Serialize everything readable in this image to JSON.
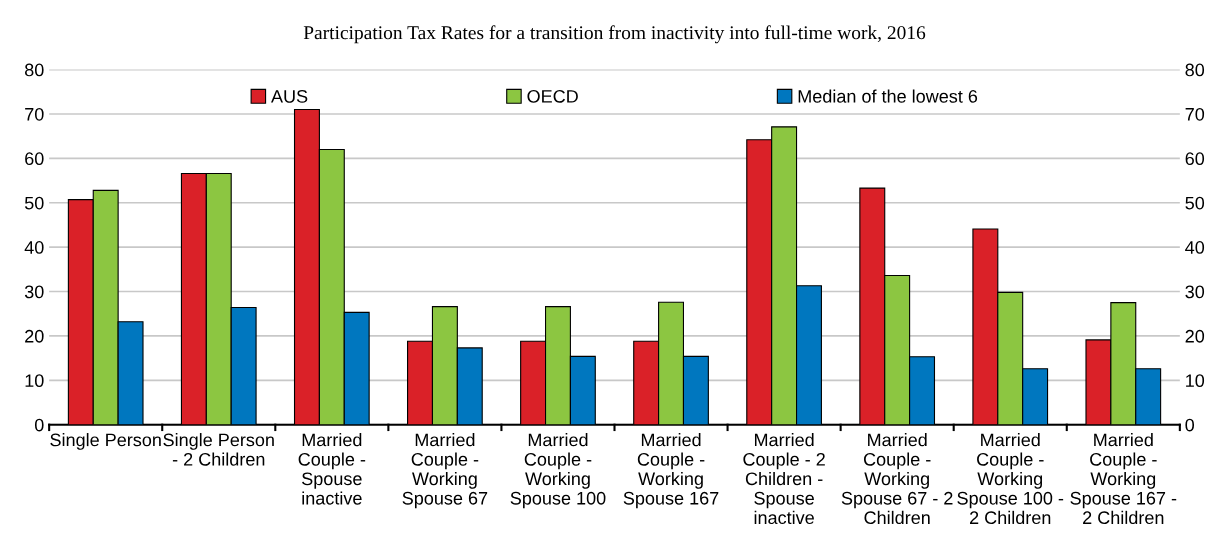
{
  "chart_data": {
    "type": "bar",
    "title": "Participation Tax Rates for a transition from inactivity into full-time work, 2016",
    "categories": [
      "Single Person",
      "Single Person\n- 2 Children",
      "Married\nCouple -\nSpouse\ninactive",
      "Married\nCouple -\nWorking\nSpouse 67",
      "Married\nCouple -\nWorking\nSpouse 100",
      "Married\nCouple -\nWorking\nSpouse 167",
      "Married\nCouple - 2\nChildren -\nSpouse\ninactive",
      "Married\nCouple -\nWorking\nSpouse 67 - 2\nChildren",
      "Married\nCouple -\nWorking\nSpouse 100 -\n2 Children",
      "Married\nCouple -\nWorking\nSpouse 167 -\n2 Children"
    ],
    "series": [
      {
        "name": "AUS",
        "color": "#da2128",
        "values": [
          50.7,
          56.6,
          71.0,
          18.8,
          18.8,
          18.8,
          64.2,
          53.3,
          44.1,
          19.1
        ]
      },
      {
        "name": "OECD",
        "color": "#8cc641",
        "values": [
          52.8,
          56.6,
          62.0,
          26.6,
          26.6,
          27.6,
          67.1,
          33.6,
          29.8,
          27.5
        ]
      },
      {
        "name": "Median of the lowest 6",
        "color": "#0077bf",
        "values": [
          23.2,
          26.4,
          25.3,
          17.3,
          15.4,
          15.4,
          31.3,
          15.3,
          12.6,
          12.6
        ]
      }
    ],
    "ylim": [
      0,
      80
    ],
    "yticks": [
      0,
      10,
      20,
      30,
      40,
      50,
      60,
      70,
      80
    ],
    "y2lim": [
      0,
      80
    ],
    "y2ticks": [
      0,
      10,
      20,
      30,
      40,
      50,
      60,
      70,
      80
    ],
    "grid": "y",
    "legend": "top"
  }
}
